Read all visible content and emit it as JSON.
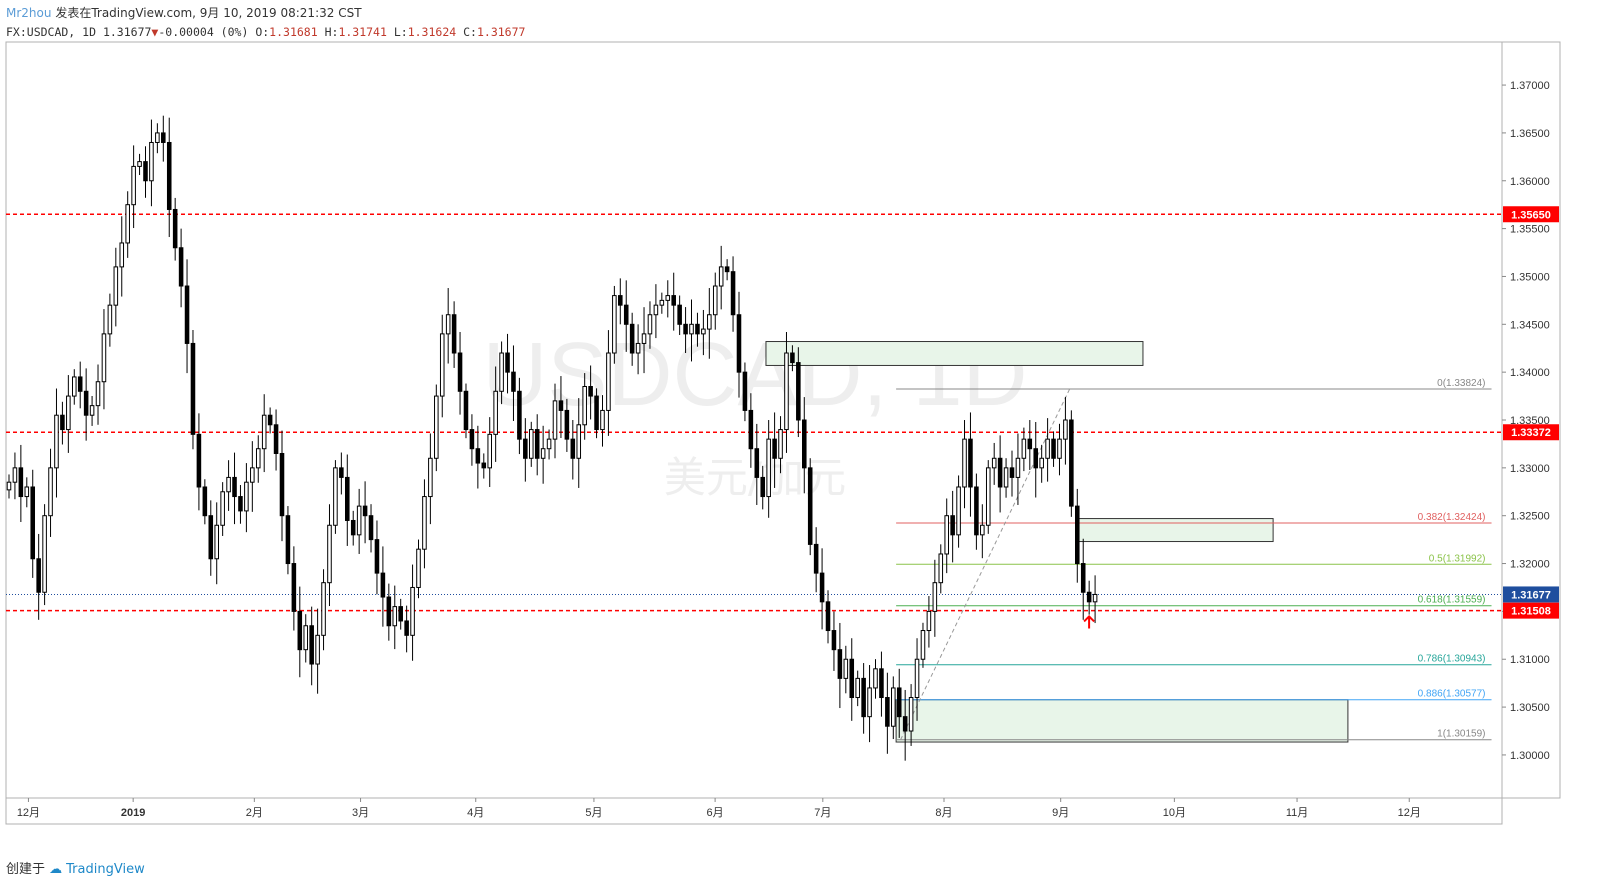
{
  "header": {
    "author": "Mr2hou",
    "published": "发表在TradingView.com, 9月 10, 2019 08:21:32 CST"
  },
  "ohlc": {
    "symbol": "FX:USDCAD, 1D",
    "last": "1.31677",
    "change": "-0.00004 (0%)",
    "open_label": "O:",
    "open": "1.31681",
    "high_label": "H:",
    "high": "1.31741",
    "low_label": "L:",
    "low": "1.31624",
    "close_label": "C:",
    "close": "1.31677"
  },
  "footer": {
    "created": "创建于",
    "brand": "TradingView"
  },
  "watermark": {
    "symbol": "USDCAD, 1D",
    "name": "美元/加元"
  },
  "colors": {
    "up": "#ffffff",
    "down": "#000000",
    "wick": "#000000",
    "level": "#ff0000",
    "last": "#1f4e9e",
    "zone_fill": "#e8f5e9"
  },
  "chart_data": {
    "type": "candlestick",
    "ylim": [
      1.2955,
      1.3745
    ],
    "y_ticks": [
      "1.37000",
      "1.36500",
      "1.36000",
      "1.35500",
      "1.35000",
      "1.34500",
      "1.34000",
      "1.33500",
      "1.33000",
      "1.32500",
      "1.32000",
      "1.31500",
      "1.31000",
      "1.30500",
      "1.30000"
    ],
    "x_ticks": [
      {
        "label": "12月",
        "t": 0.015
      },
      {
        "label": "2019",
        "t": 0.085
      },
      {
        "label": "2月",
        "t": 0.166
      },
      {
        "label": "3月",
        "t": 0.237
      },
      {
        "label": "4月",
        "t": 0.314
      },
      {
        "label": "5月",
        "t": 0.393
      },
      {
        "label": "6月",
        "t": 0.474
      },
      {
        "label": "7月",
        "t": 0.546
      },
      {
        "label": "8月",
        "t": 0.627
      },
      {
        "label": "9月",
        "t": 0.705
      },
      {
        "label": "10月",
        "t": 0.781
      },
      {
        "label": "11月",
        "t": 0.863
      },
      {
        "label": "12月",
        "t": 0.938
      }
    ],
    "levels": [
      {
        "value": 1.3565,
        "label": "1.35650"
      },
      {
        "value": 1.33372,
        "label": "1.33372"
      },
      {
        "value": 1.31508,
        "label": "1.31508"
      }
    ],
    "last_price": {
      "value": 1.31677,
      "label": "1.31677"
    },
    "fib": [
      {
        "ratio": "0",
        "label": "0(1.33824)",
        "value": 1.33824,
        "color": "#888888"
      },
      {
        "ratio": "0.382",
        "label": "0.382(1.32424)",
        "value": 1.32424,
        "color": "#e06060"
      },
      {
        "ratio": "0.5",
        "label": "0.5(1.31992)",
        "value": 1.31992,
        "color": "#8bc34a"
      },
      {
        "ratio": "0.618",
        "label": "0.618(1.31559)",
        "value": 1.31559,
        "color": "#4caf50"
      },
      {
        "ratio": "0.786",
        "label": "0.786(1.30943)",
        "value": 1.30943,
        "color": "#26a69a"
      },
      {
        "ratio": "0.886",
        "label": "0.886(1.30577)",
        "value": 1.30577,
        "color": "#42a5f5"
      },
      {
        "ratio": "1",
        "label": "1(1.30159)",
        "value": 1.30159,
        "color": "#888888"
      }
    ],
    "zones": [
      {
        "t0": 0.508,
        "t1": 0.76,
        "top": 1.3432,
        "bottom": 1.3407
      },
      {
        "t0": 0.717,
        "t1": 0.847,
        "top": 1.3247,
        "bottom": 1.3223
      },
      {
        "t0": 0.595,
        "t1": 0.897,
        "top": 1.30577,
        "bottom": 1.30135
      }
    ],
    "closes": [
      1.3285,
      1.33,
      1.327,
      1.328,
      1.3205,
      1.317,
      1.325,
      1.33,
      1.3355,
      1.334,
      1.3375,
      1.3395,
      1.338,
      1.3355,
      1.3365,
      1.339,
      1.344,
      1.347,
      1.351,
      1.3535,
      1.3575,
      1.3615,
      1.362,
      1.36,
      1.364,
      1.365,
      1.364,
      1.357,
      1.353,
      1.349,
      1.343,
      1.3335,
      1.328,
      1.325,
      1.3205,
      1.324,
      1.3275,
      1.329,
      1.327,
      1.3255,
      1.3285,
      1.33,
      1.332,
      1.3355,
      1.3345,
      1.3315,
      1.325,
      1.32,
      1.315,
      1.311,
      1.3135,
      1.3095,
      1.3125,
      1.318,
      1.324,
      1.33,
      1.329,
      1.3245,
      1.323,
      1.326,
      1.325,
      1.3225,
      1.319,
      1.3165,
      1.3135,
      1.3155,
      1.314,
      1.3125,
      1.3175,
      1.3215,
      1.327,
      1.331,
      1.3375,
      1.344,
      1.346,
      1.342,
      1.338,
      1.334,
      1.332,
      1.3305,
      1.33,
      1.3335,
      1.338,
      1.342,
      1.34,
      1.338,
      1.333,
      1.331,
      1.334,
      1.331,
      1.332,
      1.333,
      1.337,
      1.336,
      1.333,
      1.331,
      1.3345,
      1.3385,
      1.3375,
      1.334,
      1.336,
      1.342,
      1.348,
      1.347,
      1.345,
      1.342,
      1.343,
      1.344,
      1.346,
      1.347,
      1.3475,
      1.348,
      1.347,
      1.345,
      1.344,
      1.345,
      1.344,
      1.3445,
      1.346,
      1.349,
      1.351,
      1.3505,
      1.346,
      1.34,
      1.336,
      1.332,
      1.329,
      1.327,
      1.333,
      1.331,
      1.334,
      1.342,
      1.341,
      1.335,
      1.33,
      1.322,
      1.319,
      1.316,
      1.313,
      1.311,
      1.308,
      1.31,
      1.306,
      1.308,
      1.304,
      1.307,
      1.309,
      1.306,
      1.303,
      1.307,
      1.304,
      1.3025,
      1.306,
      1.31,
      1.313,
      1.315,
      1.318,
      1.321,
      1.325,
      1.323,
      1.328,
      1.333,
      1.328,
      1.323,
      1.324,
      1.33,
      1.331,
      1.328,
      1.33,
      1.329,
      1.331,
      1.333,
      1.332,
      1.33,
      1.331,
      1.333,
      1.331,
      1.333,
      1.335,
      1.326,
      1.32,
      1.317,
      1.316,
      1.31677
    ]
  }
}
